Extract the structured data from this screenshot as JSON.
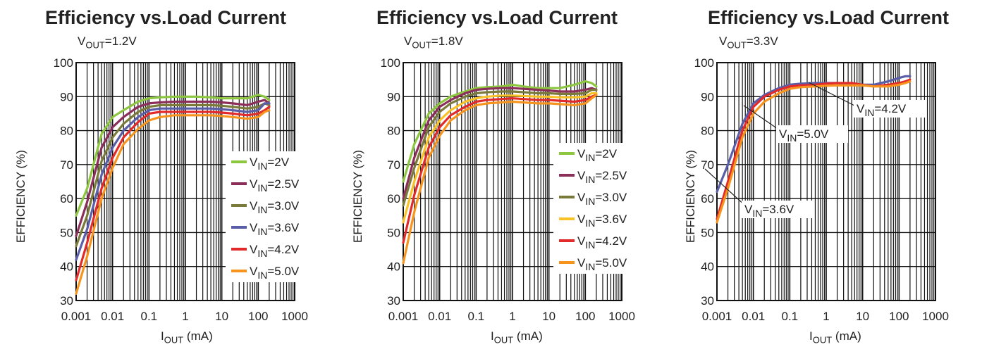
{
  "chart_data": [
    {
      "type": "line",
      "title": "Efficiency vs.Load Current",
      "subtitle": "VOUT=1.2V",
      "xlabel": "IOUT (mA)",
      "ylabel": "EFFICIENCY (%)",
      "xscale": "log",
      "xlim": [
        0.001,
        1000
      ],
      "ylim": [
        30,
        100
      ],
      "x_ticks": [
        "0.001",
        "0.01",
        "0.1",
        "1",
        "10",
        "100",
        "1000"
      ],
      "y_ticks": [
        "30",
        "40",
        "50",
        "60",
        "70",
        "80",
        "90",
        "100"
      ],
      "grid": true,
      "legend_position": "bottom-right",
      "series": [
        {
          "name": "VIN=2V",
          "color": "#8dc63f",
          "x": [
            0.001,
            0.002,
            0.005,
            0.01,
            0.02,
            0.05,
            0.1,
            0.2,
            0.5,
            1,
            2,
            5,
            10,
            20,
            50,
            100,
            150,
            200
          ],
          "y": [
            55,
            63,
            79,
            84,
            86,
            88.5,
            89.5,
            89.8,
            90,
            90,
            90,
            89.8,
            89.5,
            89.5,
            89.5,
            90.5,
            90,
            89
          ]
        },
        {
          "name": "VIN=2.5V",
          "color": "#8b2f5a",
          "x": [
            0.001,
            0.002,
            0.005,
            0.01,
            0.02,
            0.05,
            0.1,
            0.2,
            0.5,
            1,
            2,
            5,
            10,
            20,
            50,
            100,
            150,
            200
          ],
          "y": [
            49,
            59,
            75,
            81,
            84,
            87,
            88,
            88.3,
            88.5,
            88.5,
            88.5,
            88.5,
            88.3,
            88,
            87.5,
            88.5,
            89,
            88
          ]
        },
        {
          "name": "VIN=3.0V",
          "color": "#7a7a3a",
          "x": [
            0.001,
            0.002,
            0.005,
            0.01,
            0.02,
            0.05,
            0.1,
            0.2,
            0.5,
            1,
            2,
            5,
            10,
            20,
            50,
            100,
            150,
            200
          ],
          "y": [
            46,
            55,
            71,
            78,
            82,
            85.5,
            87,
            87.5,
            87.5,
            87.5,
            87.5,
            87.5,
            87.3,
            87,
            86.5,
            87,
            88,
            87.5
          ]
        },
        {
          "name": "VIN=3.6V",
          "color": "#5a5ea8",
          "x": [
            0.001,
            0.002,
            0.005,
            0.01,
            0.02,
            0.05,
            0.1,
            0.2,
            0.5,
            1,
            2,
            5,
            10,
            20,
            50,
            100,
            150,
            200
          ],
          "y": [
            42,
            51,
            67,
            75,
            80,
            84,
            86,
            86.5,
            86.5,
            86.5,
            86.5,
            86.5,
            86.3,
            86,
            85.5,
            86,
            88,
            88
          ]
        },
        {
          "name": "VIN=4.2V",
          "color": "#e32a2a",
          "x": [
            0.001,
            0.002,
            0.005,
            0.01,
            0.02,
            0.05,
            0.1,
            0.2,
            0.5,
            1,
            2,
            5,
            10,
            20,
            50,
            100,
            150,
            200
          ],
          "y": [
            36,
            47,
            63,
            72,
            78,
            82.5,
            85,
            85.5,
            85.5,
            85.5,
            85.5,
            85.5,
            85.3,
            85,
            84.5,
            85,
            86,
            87
          ]
        },
        {
          "name": "VIN=5.0V",
          "color": "#f7941d",
          "x": [
            0.001,
            0.002,
            0.005,
            0.01,
            0.02,
            0.05,
            0.1,
            0.2,
            0.5,
            1,
            2,
            5,
            10,
            20,
            50,
            100,
            150,
            200
          ],
          "y": [
            32,
            43,
            60,
            69,
            76,
            80.5,
            83,
            84,
            84.5,
            84.5,
            84.5,
            84.5,
            84.3,
            84,
            83.5,
            84,
            85.5,
            86
          ]
        }
      ]
    },
    {
      "type": "line",
      "title": "Efficiency vs.Load Current",
      "subtitle": "VOUT=1.8V",
      "xlabel": "IOUT (mA)",
      "ylabel": "EFFICIENCY (%)",
      "xscale": "log",
      "xlim": [
        0.001,
        1000
      ],
      "ylim": [
        30,
        100
      ],
      "x_ticks": [
        "0.001",
        "0.01",
        "0.1",
        "1",
        "10",
        "100",
        "1000"
      ],
      "y_ticks": [
        "30",
        "40",
        "50",
        "60",
        "70",
        "80",
        "90",
        "100"
      ],
      "grid": true,
      "legend_position": "bottom-right",
      "series": [
        {
          "name": "VIN=2V",
          "color": "#8dc63f",
          "x": [
            0.001,
            0.002,
            0.005,
            0.01,
            0.02,
            0.05,
            0.1,
            0.2,
            0.5,
            1,
            2,
            5,
            10,
            20,
            50,
            100,
            150,
            200
          ],
          "y": [
            65,
            76,
            85,
            88,
            90,
            91.5,
            92.5,
            92.8,
            93,
            93.5,
            93,
            92.5,
            92.5,
            92.5,
            93.5,
            94.5,
            94,
            93
          ]
        },
        {
          "name": "VIN=2.5V",
          "color": "#8b2f5a",
          "x": [
            0.001,
            0.002,
            0.005,
            0.01,
            0.02,
            0.05,
            0.1,
            0.2,
            0.5,
            1,
            2,
            5,
            10,
            20,
            50,
            100,
            150,
            200
          ],
          "y": [
            60,
            72,
            83,
            87,
            89,
            91,
            92,
            92.3,
            92.5,
            92.5,
            92.3,
            92,
            91.8,
            91.5,
            91.5,
            92,
            92.5,
            92
          ]
        },
        {
          "name": "VIN=3.0V",
          "color": "#7a7a3a",
          "x": [
            0.001,
            0.002,
            0.005,
            0.01,
            0.02,
            0.05,
            0.1,
            0.2,
            0.5,
            1,
            2,
            5,
            10,
            20,
            50,
            100,
            150,
            200
          ],
          "y": [
            58,
            69,
            81,
            85.5,
            88,
            90,
            91,
            91.3,
            91.5,
            91.5,
            91.3,
            91,
            91,
            90.8,
            90.8,
            91,
            92,
            92
          ]
        },
        {
          "name": "VIN=3.6V",
          "color": "#f9c226",
          "x": [
            0.001,
            0.002,
            0.005,
            0.01,
            0.02,
            0.05,
            0.1,
            0.2,
            0.5,
            1,
            2,
            5,
            10,
            20,
            50,
            100,
            150,
            200
          ],
          "y": [
            53,
            65,
            78,
            83,
            86,
            88.5,
            89.5,
            90,
            90.3,
            90.3,
            90.2,
            90,
            90,
            89.8,
            89.8,
            90,
            91,
            91
          ]
        },
        {
          "name": "VIN=4.2V",
          "color": "#e32a2a",
          "x": [
            0.001,
            0.002,
            0.005,
            0.01,
            0.02,
            0.05,
            0.1,
            0.2,
            0.5,
            1,
            2,
            5,
            10,
            20,
            50,
            100,
            150,
            200
          ],
          "y": [
            47,
            61,
            75,
            81,
            84.5,
            87,
            88.5,
            89,
            89.3,
            89.5,
            89.3,
            89,
            89,
            88.8,
            88.5,
            89,
            90,
            90.5
          ]
        },
        {
          "name": "VIN=5.0V",
          "color": "#f7941d",
          "x": [
            0.001,
            0.002,
            0.005,
            0.01,
            0.02,
            0.05,
            0.1,
            0.2,
            0.5,
            1,
            2,
            5,
            10,
            20,
            50,
            100,
            150,
            200
          ],
          "y": [
            41,
            56,
            72,
            78.5,
            83,
            86,
            87.5,
            88,
            88.3,
            88.5,
            88.3,
            88,
            88,
            87.8,
            87.5,
            88,
            89.5,
            90.5
          ]
        }
      ]
    },
    {
      "type": "line",
      "title": "Efficiency vs.Load Current",
      "subtitle": "VOUT=3.3V",
      "xlabel": "IOUT (mA)",
      "ylabel": "EFFICIENCY (%)",
      "xscale": "log",
      "xlim": [
        0.001,
        1000
      ],
      "ylim": [
        30,
        100
      ],
      "x_ticks": [
        "0.001",
        "0.01",
        "0.1",
        "1",
        "10",
        "100",
        "1000"
      ],
      "y_ticks": [
        "30",
        "40",
        "50",
        "60",
        "70",
        "80",
        "90",
        "100"
      ],
      "grid": true,
      "annotations": [
        "VIN=4.2V",
        "VIN=5.0V",
        "VIN=3.6V"
      ],
      "series": [
        {
          "name": "VIN=3.6V",
          "color": "#5a5ea8",
          "x": [
            0.001,
            0.002,
            0.005,
            0.01,
            0.02,
            0.05,
            0.1,
            0.2,
            0.5,
            1,
            2,
            5,
            10,
            20,
            50,
            100,
            150,
            200
          ],
          "y": [
            62,
            70,
            82,
            88,
            90.5,
            92.5,
            93.5,
            93.8,
            94,
            94,
            94,
            93.5,
            93.5,
            93.5,
            94.5,
            95.5,
            96,
            96
          ]
        },
        {
          "name": "VIN=4.2V",
          "color": "#e32a2a",
          "x": [
            0.001,
            0.002,
            0.005,
            0.01,
            0.02,
            0.05,
            0.1,
            0.2,
            0.5,
            1,
            2,
            5,
            10,
            20,
            50,
            100,
            150,
            200
          ],
          "y": [
            54,
            65,
            80,
            87,
            90,
            92,
            93,
            93.3,
            93.5,
            93.8,
            94,
            94,
            93.5,
            93,
            93.5,
            94,
            94.5,
            95
          ]
        },
        {
          "name": "VIN=5.0V",
          "color": "#f7941d",
          "x": [
            0.001,
            0.002,
            0.005,
            0.01,
            0.02,
            0.05,
            0.1,
            0.2,
            0.5,
            1,
            2,
            5,
            10,
            20,
            50,
            100,
            150,
            200
          ],
          "y": [
            53,
            63,
            78,
            85,
            88.5,
            91,
            92.3,
            92.8,
            93,
            93.2,
            93.3,
            93.3,
            93.3,
            93,
            93,
            93.5,
            94,
            94.5
          ]
        }
      ]
    }
  ]
}
